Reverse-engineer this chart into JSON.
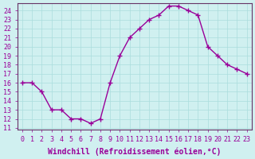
{
  "x": [
    0,
    1,
    2,
    3,
    4,
    5,
    6,
    7,
    8,
    9,
    10,
    11,
    12,
    13,
    14,
    15,
    16,
    17,
    18,
    19,
    20,
    21,
    22,
    23
  ],
  "y": [
    16,
    16,
    15,
    13,
    13,
    12,
    12,
    11.5,
    12,
    16,
    19,
    21,
    22,
    23,
    23.5,
    24.5,
    24.5,
    24,
    23.5,
    20,
    19,
    18,
    17.5,
    17
  ],
  "line_color": "#990099",
  "marker": "+",
  "bg_color": "#d0f0f0",
  "grid_color": "#aadddd",
  "xlabel": "Windchill (Refroidissement éolien,°C)",
  "xlabel_color": "#990099",
  "ylabel_ticks": [
    11,
    12,
    13,
    14,
    15,
    16,
    17,
    18,
    19,
    20,
    21,
    22,
    23,
    24
  ],
  "ylim": [
    10.8,
    24.8
  ],
  "xlim": [
    -0.5,
    23.5
  ],
  "xticks": [
    0,
    1,
    2,
    3,
    4,
    5,
    6,
    7,
    8,
    9,
    10,
    11,
    12,
    13,
    14,
    15,
    16,
    17,
    18,
    19,
    20,
    21,
    22,
    23
  ],
  "tick_color": "#990099",
  "tick_fontsize": 6,
  "xlabel_fontsize": 7,
  "axis_color": "#663366"
}
